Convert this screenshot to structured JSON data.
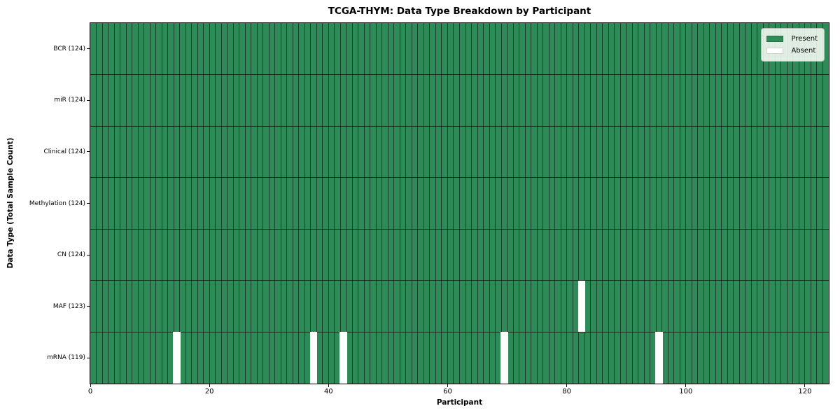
{
  "chart_data": {
    "type": "heatmap",
    "title": "TCGA-THYM: Data Type Breakdown by Participant",
    "xlabel": "Participant",
    "ylabel": "Data Type (Total Sample Count)",
    "n_participants": 124,
    "x_axis": {
      "ticks": [
        0,
        20,
        40,
        60,
        80,
        100,
        120
      ],
      "range": [
        0,
        124
      ]
    },
    "rows": [
      {
        "label": "BCR (124)",
        "data_type": "BCR",
        "total": 124,
        "absent_participants": []
      },
      {
        "label": "miR (124)",
        "data_type": "miR",
        "total": 124,
        "absent_participants": []
      },
      {
        "label": "Clinical (124)",
        "data_type": "Clinical",
        "total": 124,
        "absent_participants": []
      },
      {
        "label": "Methylation (124)",
        "data_type": "Methylation",
        "total": 124,
        "absent_participants": []
      },
      {
        "label": "CN (124)",
        "data_type": "CN",
        "total": 124,
        "absent_participants": []
      },
      {
        "label": "MAF (123)",
        "data_type": "MAF",
        "total": 123,
        "absent_participants": [
          82
        ]
      },
      {
        "label": "mRNA (119)",
        "data_type": "mRNA",
        "total": 119,
        "absent_participants": [
          14,
          37,
          42,
          69,
          95
        ]
      }
    ],
    "legend": [
      {
        "label": "Present",
        "color": "#2e8b57"
      },
      {
        "label": "Absent",
        "color": "#ffffff"
      }
    ],
    "legend_position": "upper right",
    "grid": true,
    "colors": {
      "present": "#2e8b57",
      "absent": "#ffffff",
      "cell_edge": "#27563c",
      "axis": "#000000",
      "legend_background": "#f2f5f1"
    }
  }
}
